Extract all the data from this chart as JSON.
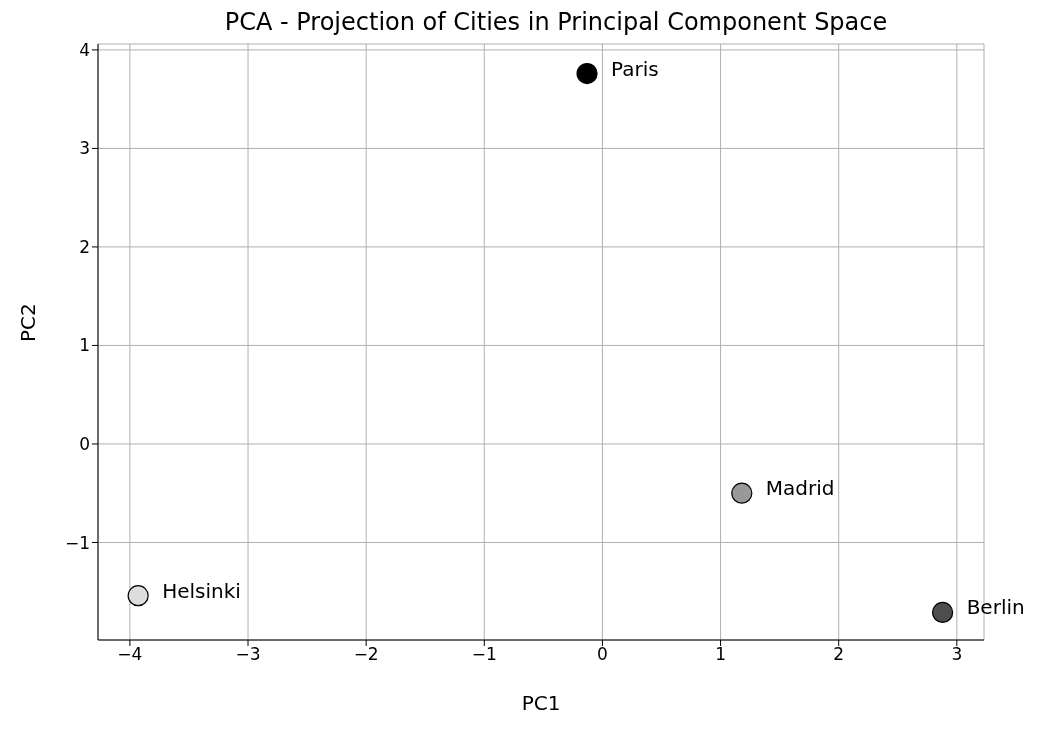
{
  "chart_data": {
    "type": "scatter",
    "title": "PCA - Projection of Cities in Principal Component Space",
    "xlabel": "PC1",
    "ylabel": "PC2",
    "series": [
      {
        "name": "Paris",
        "color": "#000000",
        "x": [
          -0.13
        ],
        "values": [
          3.76
        ]
      },
      {
        "name": "Madrid",
        "color": "#999999",
        "x": [
          1.18
        ],
        "values": [
          -0.5
        ]
      },
      {
        "name": "Helsinki",
        "color": "#dddddd",
        "x": [
          -3.93
        ],
        "values": [
          -1.54
        ]
      },
      {
        "name": "Berlin",
        "color": "#4d4d4d",
        "x": [
          2.88
        ],
        "values": [
          -1.71
        ]
      }
    ],
    "xlim": [
      -4.27,
      3.23
    ],
    "ylim": [
      -1.99,
      4.06
    ],
    "xticks": [
      -4,
      -3,
      -2,
      -1,
      0,
      1,
      2,
      3
    ],
    "yticks": [
      -1,
      0,
      1,
      2,
      3,
      4
    ],
    "grid": true,
    "legend": false,
    "marker": "circle"
  }
}
